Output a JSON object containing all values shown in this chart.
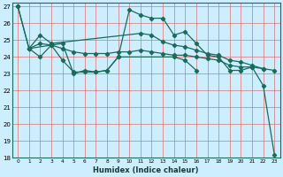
{
  "xlabel": "Humidex (Indice chaleur)",
  "background_color": "#cceeff",
  "line_color": "#1a6b5a",
  "xlim": [
    -0.5,
    23.5
  ],
  "ylim": [
    18,
    27.2
  ],
  "yticks": [
    18,
    19,
    20,
    21,
    22,
    23,
    24,
    25,
    26,
    27
  ],
  "xticks": [
    0,
    1,
    2,
    3,
    4,
    5,
    6,
    7,
    8,
    9,
    10,
    11,
    12,
    13,
    14,
    15,
    16,
    17,
    18,
    19,
    20,
    21,
    22,
    23
  ],
  "series1_x": [
    0,
    1,
    2,
    3,
    4,
    5,
    6,
    7,
    8,
    9,
    10,
    11,
    12,
    13,
    14,
    15,
    16,
    17,
    18,
    19,
    20,
    21,
    22,
    23
  ],
  "series1_y": [
    27.0,
    24.5,
    24.0,
    24.7,
    24.8,
    23.0,
    23.2,
    23.1,
    23.2,
    24.0,
    26.8,
    26.5,
    26.3,
    26.3,
    25.3,
    25.5,
    24.8,
    24.1,
    24.0,
    23.2,
    23.2,
    23.4,
    22.3,
    18.2
  ],
  "series2_x": [
    1,
    2,
    3,
    11,
    12,
    13,
    14,
    15,
    16,
    17,
    18,
    19,
    20,
    21,
    22,
    23
  ],
  "series2_y": [
    24.5,
    25.3,
    24.8,
    25.4,
    25.3,
    24.9,
    24.7,
    24.6,
    24.4,
    24.2,
    24.1,
    23.8,
    23.7,
    23.5,
    23.3,
    23.2
  ],
  "series3_x": [
    0,
    1,
    2,
    3,
    4,
    5,
    6,
    7,
    8,
    9,
    10,
    11,
    12,
    13,
    14,
    15,
    16,
    17,
    18,
    19,
    20,
    21,
    22
  ],
  "series3_y": [
    27.0,
    24.5,
    24.8,
    24.7,
    24.5,
    24.3,
    24.2,
    24.2,
    24.2,
    24.3,
    24.3,
    24.4,
    24.3,
    24.2,
    24.1,
    24.1,
    24.0,
    23.9,
    23.8,
    23.5,
    23.4,
    23.4,
    23.3
  ],
  "series4_x": [
    1,
    3,
    4,
    5,
    6,
    7,
    8,
    9,
    14,
    15,
    16
  ],
  "series4_y": [
    24.5,
    24.7,
    23.8,
    23.1,
    23.1,
    23.1,
    23.2,
    24.0,
    24.0,
    23.8,
    23.2
  ]
}
